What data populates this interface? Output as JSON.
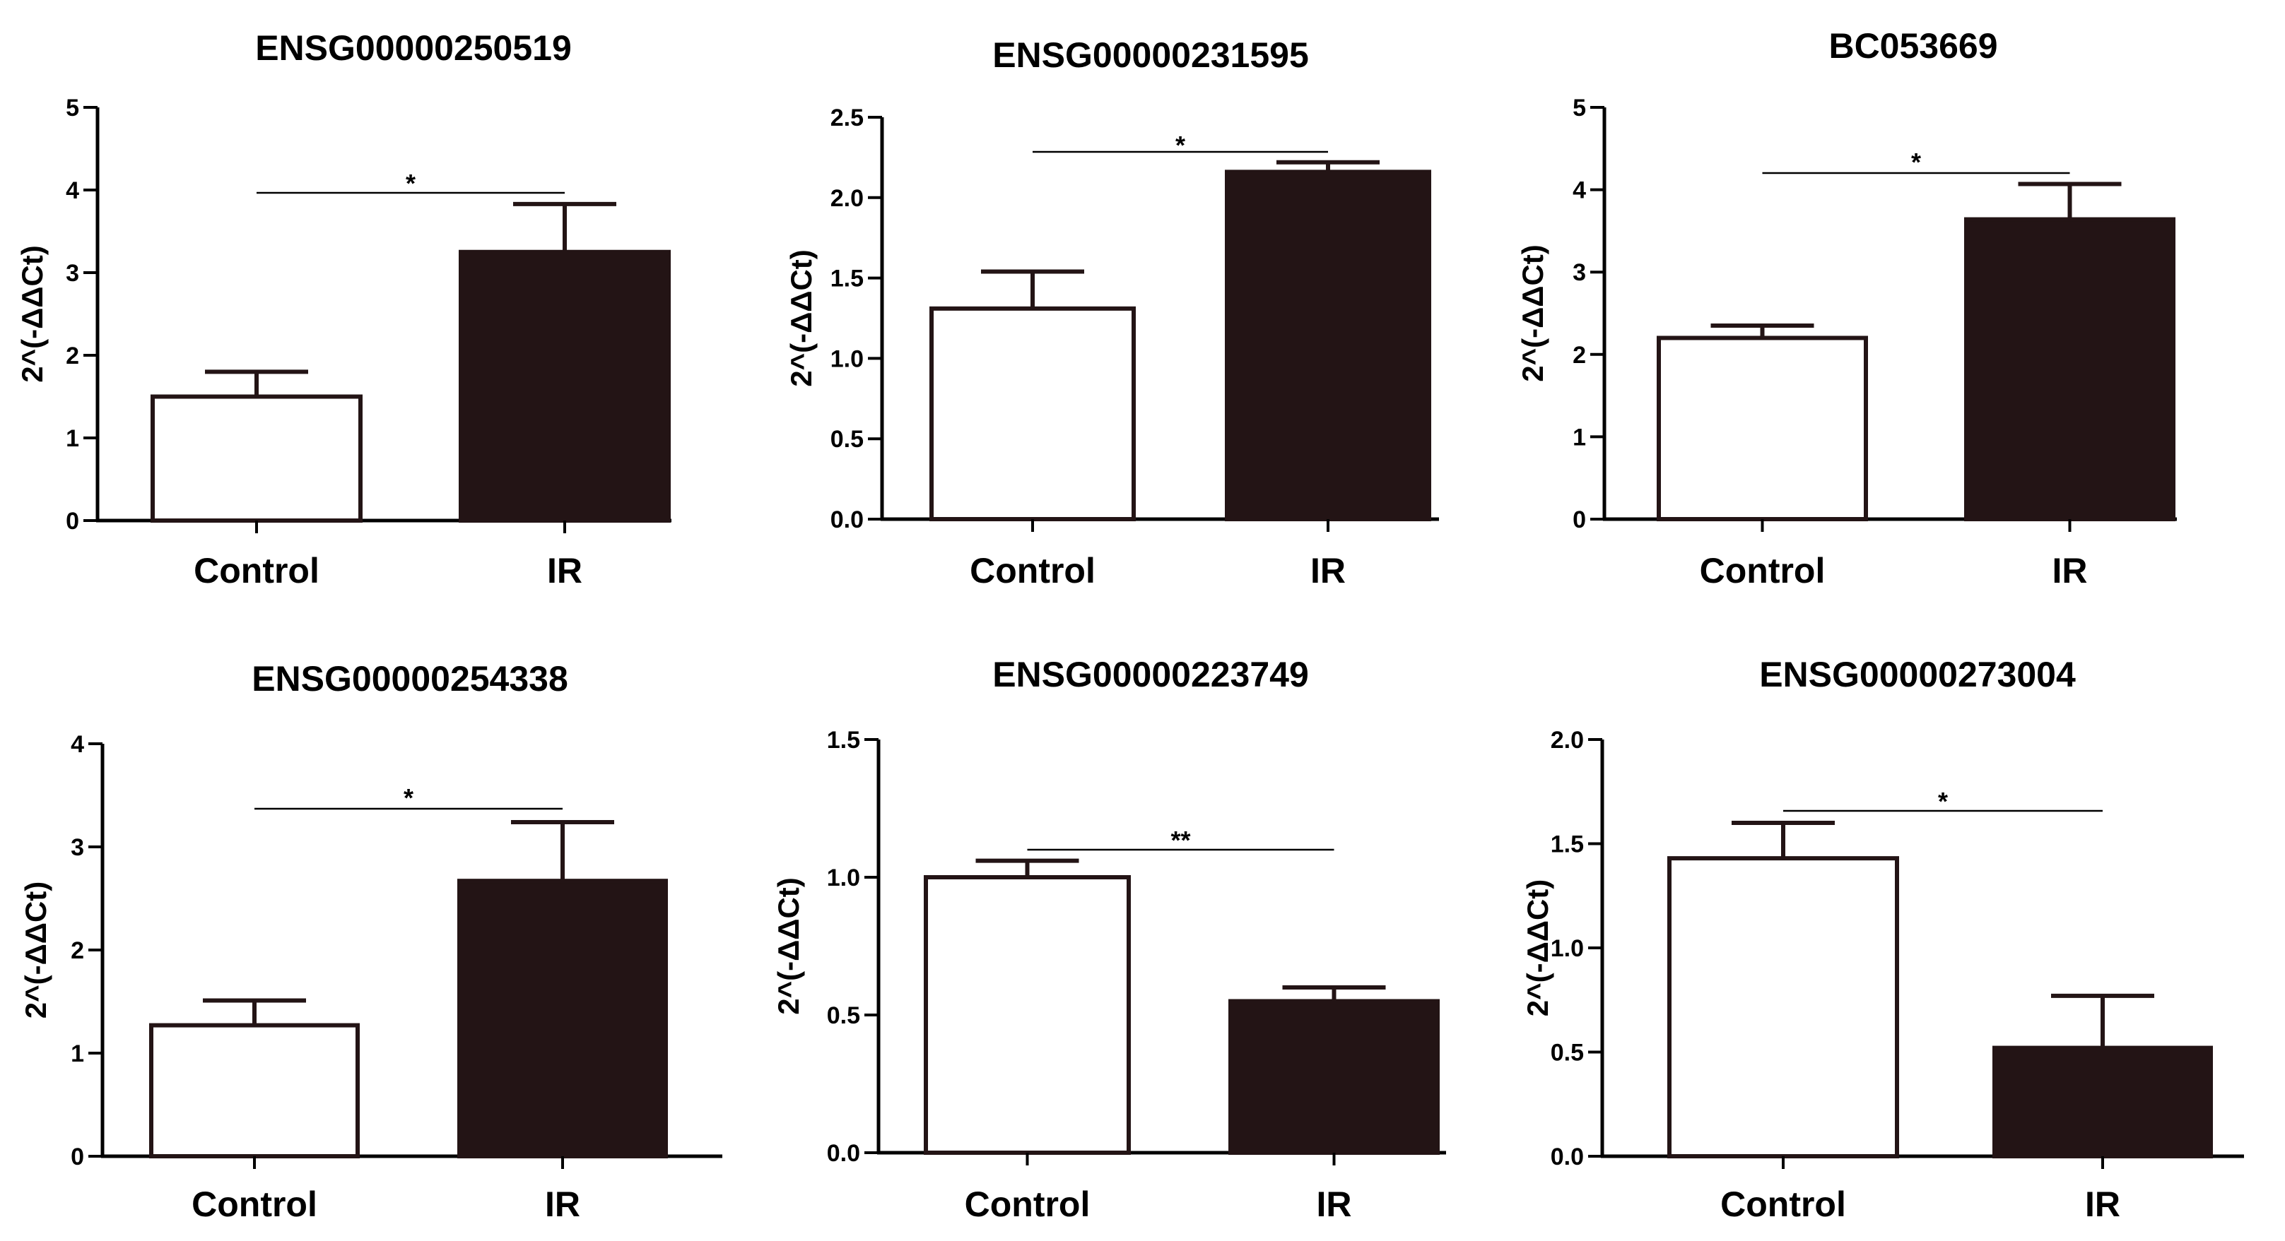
{
  "chart_data": [
    {
      "type": "bar",
      "title": "ENSG00000250519",
      "ylabel": "2^(-ΔΔCt)",
      "categories": [
        "Control",
        "IR"
      ],
      "values": [
        1.5,
        3.25
      ],
      "errors": [
        0.3,
        0.58
      ],
      "ylim": [
        0,
        5
      ],
      "yticks": [
        0,
        1,
        2,
        3,
        4,
        5
      ],
      "ytick_labels": [
        "0",
        "1",
        "2",
        "3",
        "4",
        "5"
      ],
      "significance": {
        "label": "*",
        "level": 3.98
      },
      "bar_colors": [
        "#ffffff",
        "#231415"
      ]
    },
    {
      "type": "bar",
      "title": "ENSG00000231595",
      "ylabel": "2^(-ΔΔCt)",
      "categories": [
        "Control",
        "IR"
      ],
      "values": [
        1.31,
        2.16
      ],
      "errors": [
        0.23,
        0.06
      ],
      "ylim": [
        0,
        2.5
      ],
      "yticks": [
        0,
        0.5,
        1.0,
        1.5,
        2.0,
        2.5
      ],
      "ytick_labels": [
        "0.0",
        "0.5",
        "1.0",
        "1.5",
        "2.0",
        "2.5"
      ],
      "significance": {
        "label": "*",
        "level": 2.28
      },
      "bar_colors": [
        "#ffffff",
        "#231415"
      ]
    },
    {
      "type": "bar",
      "title": "BC053669",
      "ylabel": "2^(-ΔΔCt)",
      "categories": [
        "Control",
        "IR"
      ],
      "values": [
        2.2,
        3.64
      ],
      "errors": [
        0.15,
        0.43
      ],
      "ylim": [
        0,
        5
      ],
      "yticks": [
        0,
        1,
        2,
        3,
        4,
        5
      ],
      "ytick_labels": [
        "0",
        "1",
        "2",
        "3",
        "4",
        "5"
      ],
      "significance": {
        "label": "*",
        "level": 4.22
      },
      "bar_colors": [
        "#ffffff",
        "#231415"
      ]
    },
    {
      "type": "bar",
      "title": "ENSG00000254338",
      "ylabel": "2^(-ΔΔCt)",
      "categories": [
        "Control",
        "IR"
      ],
      "values": [
        1.27,
        2.67
      ],
      "errors": [
        0.24,
        0.57
      ],
      "ylim": [
        0,
        4
      ],
      "yticks": [
        0,
        1,
        2,
        3,
        4
      ],
      "ytick_labels": [
        "0",
        "1",
        "2",
        "3",
        "4"
      ],
      "significance": {
        "label": "*",
        "level": 3.37
      },
      "bar_colors": [
        "#ffffff",
        "#231415"
      ]
    },
    {
      "type": "bar",
      "title": "ENSG00000223749",
      "ylabel": "2^(-ΔΔCt)",
      "categories": [
        "Control",
        "IR"
      ],
      "values": [
        1.0,
        0.55
      ],
      "errors": [
        0.06,
        0.05
      ],
      "ylim": [
        0,
        1.5
      ],
      "yticks": [
        0,
        0.5,
        1.0,
        1.5
      ],
      "ytick_labels": [
        "0.0",
        "0.5",
        "1.0",
        "1.5"
      ],
      "significance": {
        "label": "**",
        "level": 1.11
      },
      "bar_colors": [
        "#ffffff",
        "#231415"
      ]
    },
    {
      "type": "bar",
      "title": "ENSG00000273004",
      "ylabel": "2^(-ΔΔCt)",
      "categories": [
        "Control",
        "IR"
      ],
      "values": [
        1.43,
        0.52
      ],
      "errors": [
        0.17,
        0.25
      ],
      "ylim": [
        0,
        2.0
      ],
      "yticks": [
        0,
        0.5,
        1.0,
        1.5,
        2.0
      ],
      "ytick_labels": [
        "0.0",
        "0.5",
        "1.0",
        "1.5",
        "2.0"
      ],
      "significance": {
        "label": "*",
        "level": 1.65
      },
      "bar_colors": [
        "#ffffff",
        "#231415"
      ]
    }
  ]
}
